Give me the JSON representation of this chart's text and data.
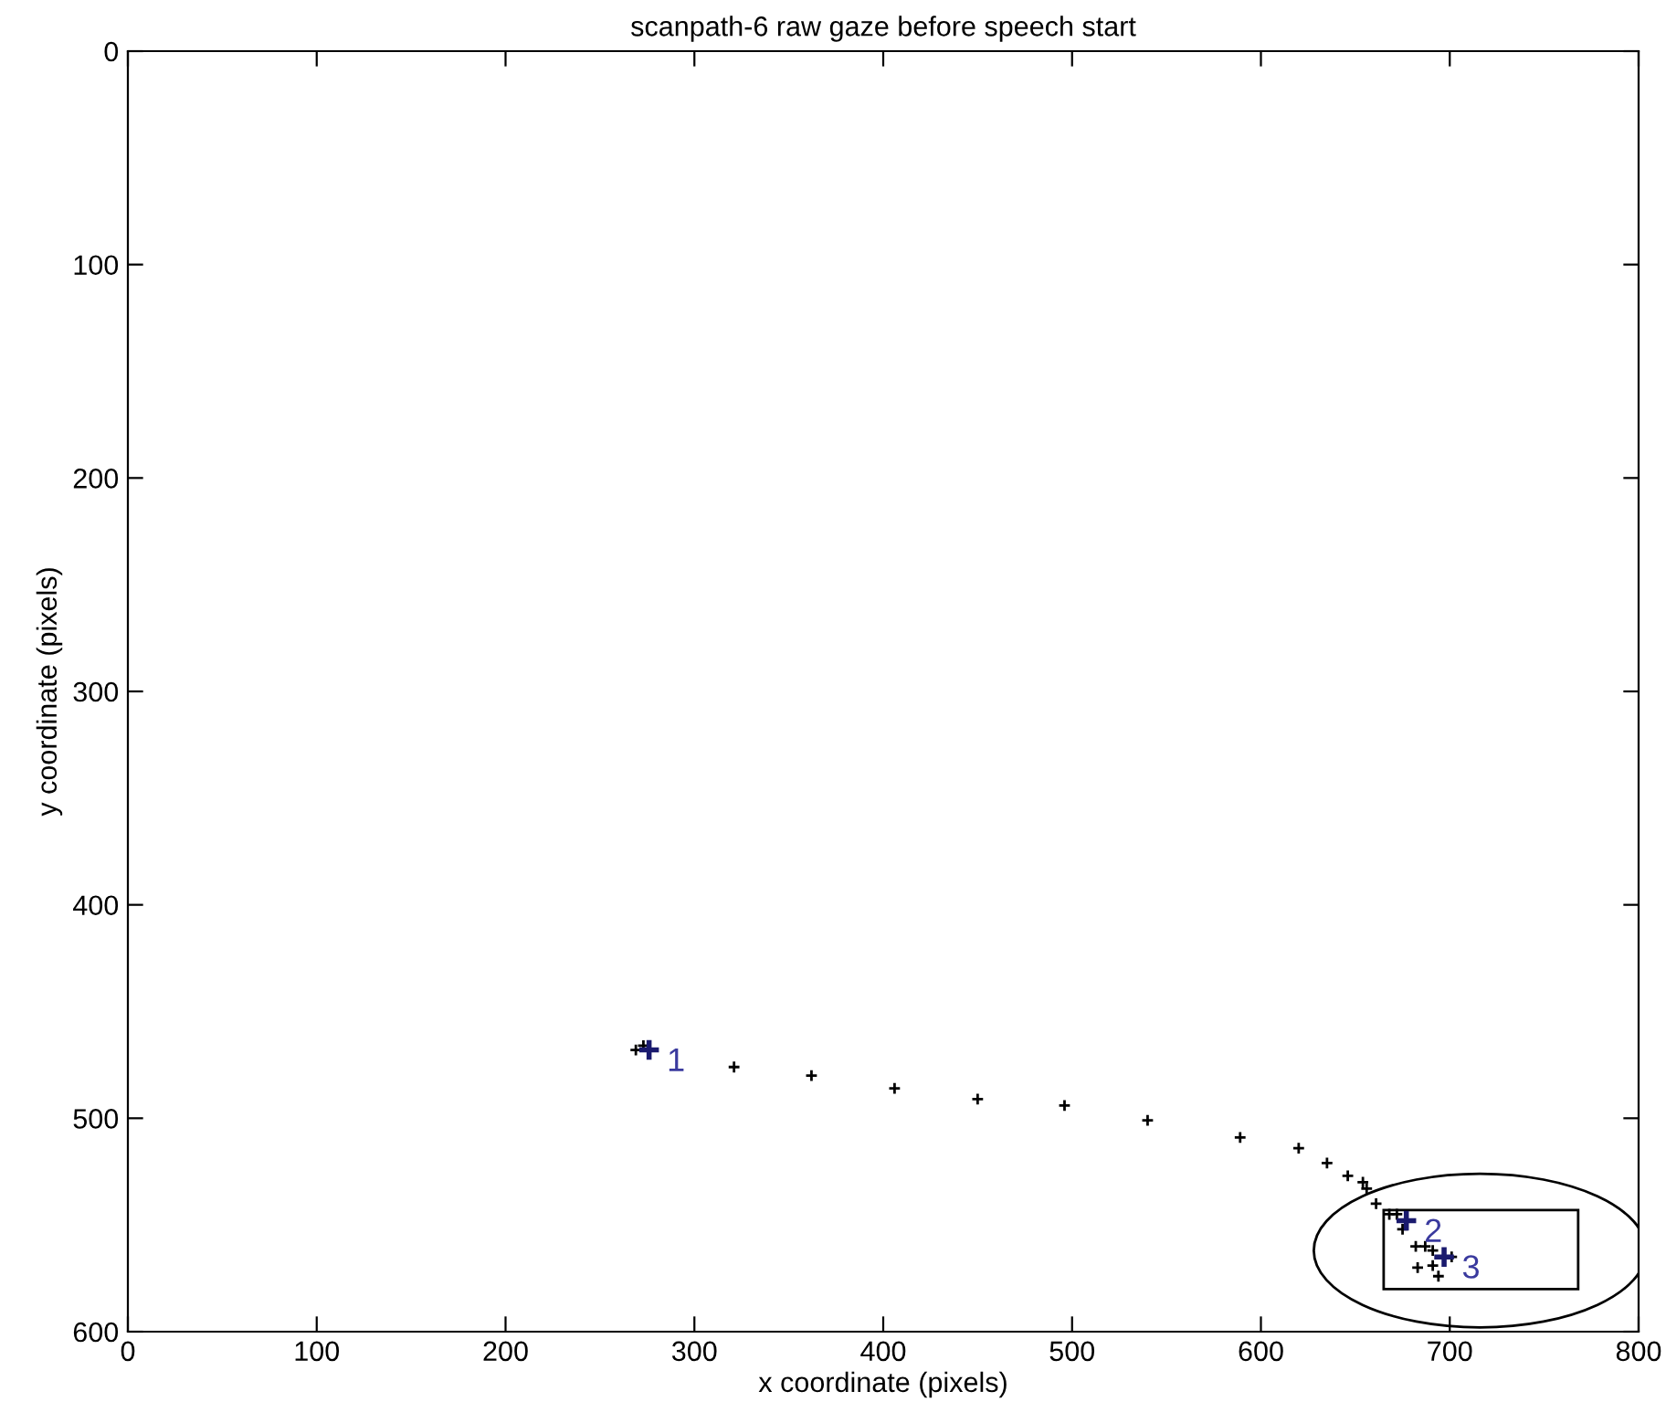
{
  "chart_data": {
    "type": "scatter",
    "title": "scanpath-6 raw gaze before speech start",
    "xlabel": "x coordinate (pixels)",
    "ylabel": "y coordinate (pixels)",
    "xlim": [
      0,
      800
    ],
    "xticks": [
      0,
      100,
      200,
      300,
      400,
      500,
      600,
      700,
      800
    ],
    "ylim": [
      600,
      0
    ],
    "yticks": [
      0,
      100,
      200,
      300,
      400,
      500,
      600
    ],
    "grid": false,
    "marker": "cross",
    "series": [
      {
        "color": "#000000",
        "x": [
          269,
          273,
          321,
          362,
          406,
          450,
          496,
          540,
          589,
          620,
          635,
          646,
          654,
          656,
          661,
          668,
          672,
          675,
          682,
          687,
          691,
          683,
          691,
          694,
          701
        ],
        "values": [
          468,
          466,
          476,
          480,
          486,
          491,
          494,
          501,
          509,
          514,
          521,
          527,
          530,
          533,
          540,
          545,
          545,
          552,
          560,
          560,
          562,
          570,
          569,
          574,
          565
        ]
      },
      {
        "color": "#1a1a6e",
        "x": [
          276,
          677,
          697
        ],
        "values": [
          468,
          548,
          565
        ]
      }
    ],
    "annotations": [
      {
        "text": "1",
        "x": 276,
        "y": 468
      },
      {
        "text": "2",
        "x": 677,
        "y": 548
      },
      {
        "text": "3",
        "x": 697,
        "y": 565
      }
    ]
  }
}
